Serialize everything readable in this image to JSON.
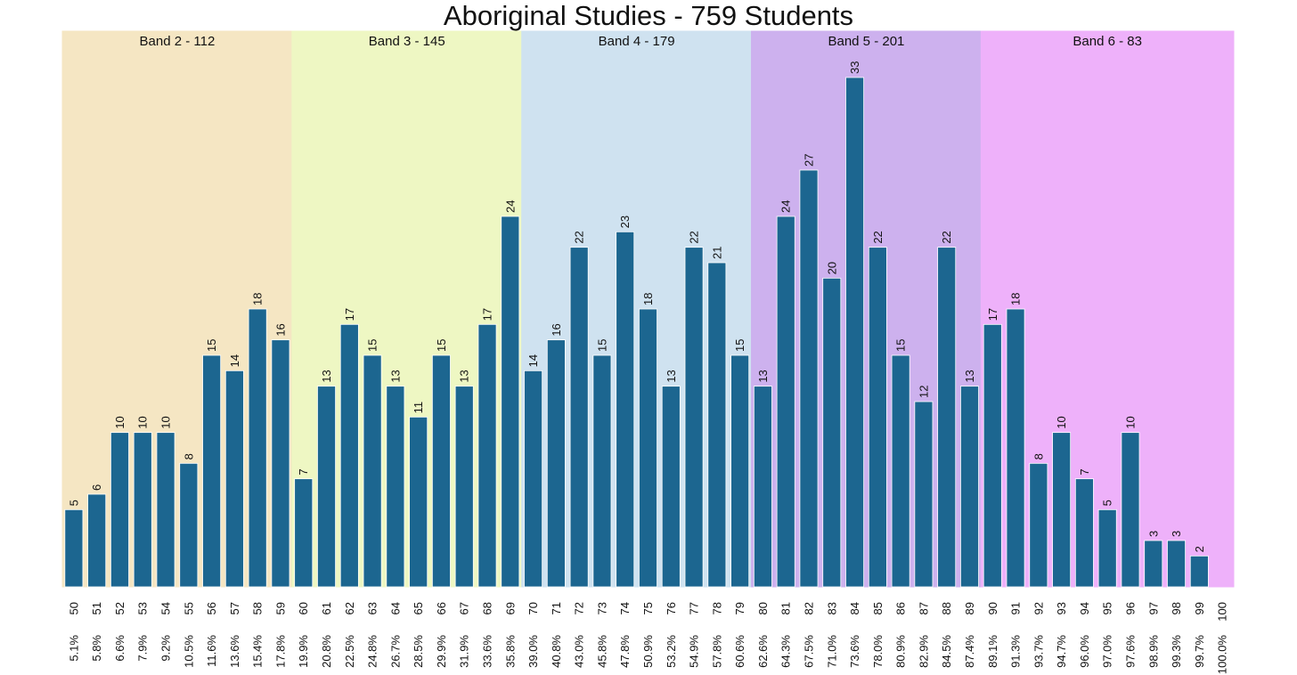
{
  "chart_data": {
    "type": "bar",
    "title": "Aboriginal Studies - 759 Students",
    "xlabel": "",
    "ylabel": "",
    "ylim": [
      0,
      36
    ],
    "bar_color": "#1c6690",
    "categories": [
      "50",
      "51",
      "52",
      "53",
      "54",
      "55",
      "56",
      "57",
      "58",
      "59",
      "60",
      "61",
      "62",
      "63",
      "64",
      "65",
      "66",
      "67",
      "68",
      "69",
      "70",
      "71",
      "72",
      "73",
      "74",
      "75",
      "76",
      "77",
      "78",
      "79",
      "80",
      "81",
      "82",
      "83",
      "84",
      "85",
      "86",
      "87",
      "88",
      "89",
      "90",
      "91",
      "92",
      "93",
      "94",
      "95",
      "96",
      "97",
      "98",
      "99",
      "100"
    ],
    "values": [
      5,
      6,
      10,
      10,
      10,
      8,
      15,
      14,
      18,
      16,
      7,
      13,
      17,
      15,
      13,
      11,
      15,
      13,
      17,
      24,
      14,
      16,
      22,
      15,
      23,
      18,
      13,
      22,
      21,
      15,
      13,
      24,
      27,
      20,
      33,
      22,
      15,
      12,
      22,
      13,
      17,
      18,
      8,
      10,
      7,
      5,
      10,
      3,
      3,
      2,
      null
    ],
    "percentiles": [
      "5.1%",
      "5.8%",
      "6.6%",
      "7.9%",
      "9.2%",
      "10.5%",
      "11.6%",
      "13.6%",
      "15.4%",
      "17.8%",
      "19.9%",
      "20.8%",
      "22.5%",
      "24.8%",
      "26.7%",
      "28.5%",
      "29.9%",
      "31.9%",
      "33.6%",
      "35.8%",
      "39.0%",
      "40.8%",
      "43.0%",
      "45.8%",
      "47.8%",
      "50.9%",
      "53.2%",
      "54.9%",
      "57.8%",
      "60.6%",
      "62.6%",
      "64.3%",
      "67.5%",
      "71.0%",
      "73.6%",
      "78.0%",
      "80.9%",
      "82.9%",
      "84.5%",
      "87.4%",
      "89.1%",
      "91.3%",
      "93.7%",
      "94.7%",
      "96.0%",
      "97.0%",
      "97.6%",
      "98.9%",
      "99.3%",
      "99.7%",
      "100.0%"
    ],
    "bands": [
      {
        "label": "Band 2 - 112",
        "from": "50",
        "to": "59",
        "color": "#f5e6c3"
      },
      {
        "label": "Band 3 - 145",
        "from": "60",
        "to": "69",
        "color": "#eef7c3"
      },
      {
        "label": "Band 4 - 179",
        "from": "70",
        "to": "79",
        "color": "#cfe2f0"
      },
      {
        "label": "Band 5 - 201",
        "from": "80",
        "to": "89",
        "color": "#cdb1ee"
      },
      {
        "label": "Band 6 - 83",
        "from": "90",
        "to": "100",
        "color": "#eeb1fa"
      }
    ]
  }
}
